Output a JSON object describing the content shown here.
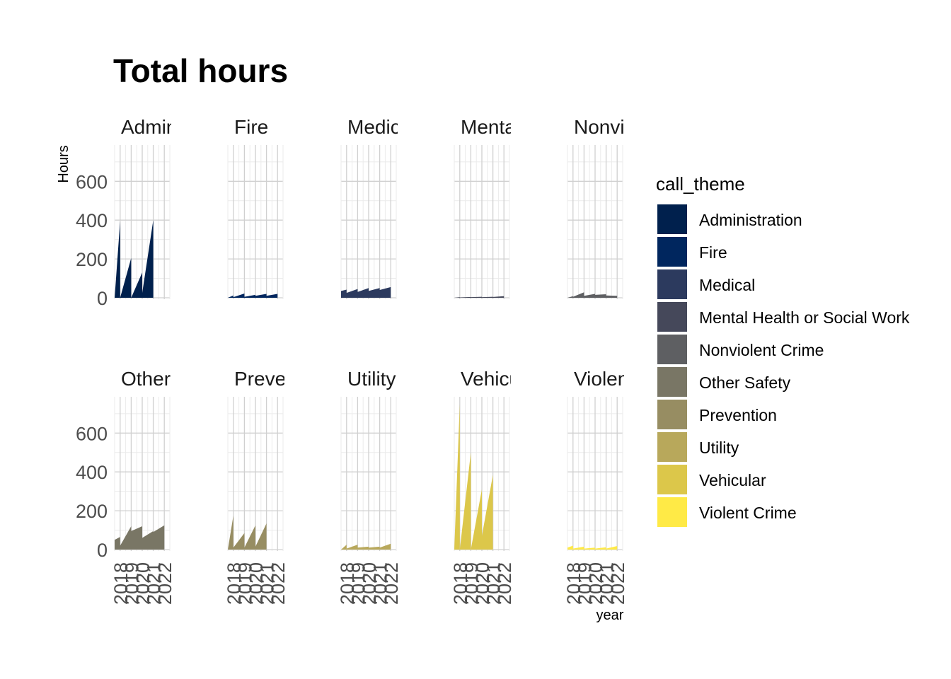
{
  "chart_data": {
    "type": "area",
    "title": "Total hours",
    "xlabel": "year",
    "ylabel": "Hours",
    "x_ticks": [
      "2018",
      "2019",
      "2020",
      "2021",
      "2022"
    ],
    "y_ticks": [
      0,
      200,
      400,
      600
    ],
    "ylim": [
      0,
      780
    ],
    "xlim": [
      2017.5,
      2022.5
    ],
    "grid": true,
    "legend": {
      "title": "call_theme",
      "position": "right",
      "entries": [
        {
          "label": "Administration",
          "color": "#00204D"
        },
        {
          "label": "Fire",
          "color": "#00265E"
        },
        {
          "label": "Medical",
          "color": "#2C3A5E"
        },
        {
          "label": "Mental Health or Social Work",
          "color": "#45485A"
        },
        {
          "label": "Nonviolent Crime",
          "color": "#5E5F62"
        },
        {
          "label": "Other Safety",
          "color": "#797665"
        },
        {
          "label": "Prevention",
          "color": "#978D62"
        },
        {
          "label": "Utility",
          "color": "#B8A85B"
        },
        {
          "label": "Vehicular",
          "color": "#DCC74A"
        },
        {
          "label": "Violent Crime",
          "color": "#FFEA46"
        }
      ]
    },
    "panels": [
      {
        "strip": "Admin",
        "color": "#00204D",
        "x": [
          2017.5,
          2018,
          2018,
          2019,
          2019,
          2020,
          2020,
          2021,
          2021,
          2022
        ],
        "y": [
          0,
          395,
          0,
          205,
          0,
          130,
          25,
          400,
          0,
          0
        ]
      },
      {
        "strip": "Fire",
        "color": "#00265E",
        "x": [
          2017.5,
          2018,
          2018,
          2019,
          2019,
          2020,
          2020,
          2021,
          2021,
          2022
        ],
        "y": [
          0,
          12,
          3,
          22,
          5,
          15,
          10,
          20,
          10,
          20
        ]
      },
      {
        "strip": "Medica",
        "color": "#2C3A5E",
        "x": [
          2017.5,
          2018,
          2018,
          2019,
          2019,
          2020,
          2020,
          2021,
          2021,
          2022
        ],
        "y": [
          35,
          42,
          25,
          45,
          30,
          50,
          35,
          50,
          40,
          55
        ]
      },
      {
        "strip": "Menta",
        "color": "#45485A",
        "x": [
          2017.5,
          2018,
          2018,
          2019,
          2019,
          2020,
          2020,
          2021,
          2021,
          2022
        ],
        "y": [
          0,
          3,
          2,
          4,
          3,
          5,
          3,
          5,
          4,
          8
        ]
      },
      {
        "strip": "Nonvio",
        "color": "#5E5F62",
        "x": [
          2017.5,
          2018,
          2018,
          2019,
          2019,
          2020,
          2020,
          2021,
          2021,
          2022
        ],
        "y": [
          0,
          8,
          5,
          28,
          10,
          20,
          15,
          18,
          12,
          10
        ]
      },
      {
        "strip": "Other",
        "color": "#797665",
        "x": [
          2017.5,
          2018,
          2018,
          2019,
          2019,
          2020,
          2020,
          2021,
          2021,
          2022
        ],
        "y": [
          50,
          65,
          20,
          120,
          95,
          120,
          60,
          95,
          90,
          125
        ]
      },
      {
        "strip": "Preven",
        "color": "#978D62",
        "x": [
          2017.5,
          2018,
          2018,
          2019,
          2019,
          2020,
          2020,
          2021,
          2021,
          2022
        ],
        "y": [
          0,
          175,
          10,
          85,
          10,
          125,
          15,
          135,
          0,
          0
        ]
      },
      {
        "strip": "Utility",
        "color": "#B8A85B",
        "x": [
          2017.5,
          2018,
          2018,
          2019,
          2019,
          2020,
          2020,
          2021,
          2021,
          2022
        ],
        "y": [
          0,
          25,
          5,
          25,
          10,
          15,
          10,
          15,
          10,
          30
        ]
      },
      {
        "strip": "Vehicu",
        "color": "#DCC74A",
        "x": [
          2017.5,
          2018,
          2018,
          2019,
          2019,
          2020,
          2020,
          2021,
          2021,
          2022
        ],
        "y": [
          0,
          750,
          0,
          500,
          0,
          310,
          70,
          385,
          0,
          0
        ]
      },
      {
        "strip": "Violen",
        "color": "#FFEA46",
        "x": [
          2017.5,
          2018,
          2018,
          2019,
          2019,
          2020,
          2020,
          2021,
          2021,
          2022
        ],
        "y": [
          10,
          20,
          5,
          15,
          5,
          10,
          5,
          12,
          5,
          18
        ]
      }
    ]
  }
}
